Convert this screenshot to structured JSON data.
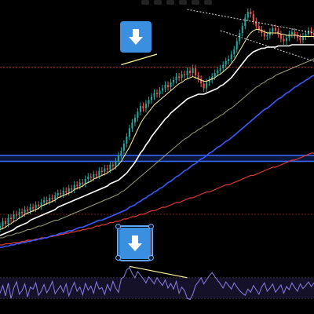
{
  "colors": {
    "background": "#000000",
    "candle_up": "#26a69a",
    "candle_down": "#ef5350",
    "ma_fast": "#fff59d",
    "ma_white": "#ffffff",
    "ma_slow": "#9e9d7a",
    "ma_blue": "#3d5afe",
    "ma_red": "#e53935",
    "support_band": "#1f3fa8",
    "resistance_line": "#b71c1c",
    "arrow_button": "#3b8fe0",
    "oscillator": "#8a7fe8",
    "divergence_line": "#fff59d"
  },
  "icons": {
    "top_marker": "arrow-down-icon",
    "bottom_marker": "arrow-down-icon"
  },
  "chart_data": [
    {
      "type": "line",
      "grid": false,
      "legend": "none",
      "price": [
        48,
        52,
        50,
        55,
        54,
        58,
        57,
        60,
        59,
        62,
        61,
        64,
        63,
        66,
        65,
        68,
        70,
        69,
        72,
        71,
        74,
        76,
        75,
        78,
        77,
        80,
        79,
        83,
        82,
        85,
        84,
        88,
        90,
        89,
        92,
        91,
        95,
        94,
        97,
        96,
        100,
        99,
        103,
        108,
        112,
        118,
        124,
        131,
        136,
        140,
        145,
        150,
        148,
        152,
        155,
        158,
        161,
        160,
        163,
        165,
        168,
        166,
        170,
        172,
        175,
        174,
        177,
        176,
        180,
        178,
        182,
        176,
        173,
        169,
        165,
        170,
        172,
        175,
        178,
        180,
        182,
        185,
        188,
        190,
        194,
        198,
        205,
        212,
        218,
        225,
        230,
        228,
        222,
        218,
        215,
        212,
        209,
        210,
        213,
        216,
        214,
        211,
        207,
        205,
        208,
        211,
        213,
        210,
        208,
        206,
        209,
        211,
        214,
        212,
        210
      ],
      "ma_fast": [
        45,
        46,
        47,
        49,
        50,
        52,
        53,
        55,
        56,
        58,
        59,
        60,
        61,
        62,
        63,
        65,
        66,
        67,
        68,
        69,
        70,
        72,
        73,
        74,
        75,
        76,
        77,
        79,
        80,
        81,
        82,
        84,
        85,
        86,
        88,
        89,
        90,
        91,
        92,
        93,
        95,
        96,
        98,
        100,
        103,
        107,
        111,
        115,
        120,
        125,
        130,
        135,
        139,
        142,
        145,
        148,
        151,
        153,
        155,
        157,
        159,
        161,
        163,
        165,
        167,
        169,
        170,
        172,
        173,
        174,
        175,
        174,
        173,
        172,
        171,
        171,
        172,
        173,
        174,
        176,
        177,
        179,
        181,
        183,
        186,
        189,
        193,
        197,
        201,
        205,
        209,
        212,
        214,
        215,
        215,
        214,
        213,
        212,
        212,
        212,
        212,
        212,
        211,
        211,
        210,
        210,
        210,
        210,
        210,
        209,
        209,
        209,
        209,
        209,
        209
      ],
      "ma_white": [
        40,
        41,
        42,
        43,
        44,
        45,
        47,
        48,
        49,
        50,
        51,
        53,
        54,
        55,
        56,
        57,
        58,
        59,
        60,
        61,
        62,
        64,
        65,
        66,
        67,
        68,
        69,
        70,
        71,
        72,
        73,
        74,
        75,
        76,
        77,
        78,
        79,
        80,
        81,
        82,
        84,
        85,
        86,
        87,
        89,
        91,
        93,
        96,
        99,
        102,
        106,
        110,
        113,
        117,
        120,
        124,
        127,
        130,
        133,
        136,
        139,
        141,
        144,
        146,
        148,
        150,
        152,
        154,
        156,
        157,
        158,
        159,
        160,
        160,
        160,
        161,
        162,
        163,
        164,
        165,
        167,
        168,
        170,
        172,
        174,
        177,
        180,
        183,
        186,
        189,
        192,
        194,
        196,
        197,
        198,
        199,
        199,
        200,
        200,
        200,
        200,
        201,
        201,
        201,
        201,
        201,
        202,
        202,
        202,
        202,
        202,
        202,
        202,
        202,
        202
      ],
      "ma_slow": [
        38,
        38,
        39,
        40,
        40,
        41,
        42,
        42,
        43,
        44,
        45,
        45,
        46,
        47,
        48,
        48,
        49,
        50,
        51,
        52,
        53,
        53,
        54,
        55,
        56,
        57,
        58,
        59,
        60,
        61,
        62,
        63,
        64,
        65,
        66,
        67,
        68,
        69,
        70,
        71,
        72,
        73,
        74,
        75,
        77,
        78,
        80,
        82,
        84,
        86,
        88,
        90,
        92,
        94,
        96,
        98,
        100,
        102,
        104,
        106,
        108,
        110,
        112,
        114,
        116,
        118,
        120,
        122,
        123,
        125,
        127,
        128,
        130,
        131,
        133,
        134,
        136,
        137,
        139,
        140,
        142,
        143,
        145,
        147,
        148,
        150,
        152,
        154,
        156,
        158,
        160,
        162,
        164,
        166,
        167,
        169,
        170,
        172,
        173,
        174,
        176,
        177,
        178,
        179,
        180,
        181,
        182,
        183,
        184,
        185,
        186,
        187,
        188,
        189,
        190
      ],
      "ma_blue": [
        30,
        30,
        31,
        31,
        32,
        32,
        33,
        33,
        34,
        34,
        35,
        35,
        36,
        36,
        37,
        37,
        38,
        38,
        39,
        40,
        40,
        41,
        42,
        42,
        43,
        44,
        44,
        45,
        46,
        47,
        47,
        48,
        49,
        50,
        51,
        52,
        53,
        53,
        54,
        55,
        56,
        57,
        58,
        59,
        60,
        61,
        62,
        64,
        65,
        66,
        68,
        69,
        71,
        72,
        74,
        75,
        77,
        78,
        80,
        81,
        83,
        85,
        86,
        88,
        90,
        91,
        93,
        95,
        96,
        98,
        100,
        101,
        103,
        105,
        106,
        108,
        110,
        111,
        113,
        115,
        116,
        118,
        120,
        121,
        123,
        125,
        127,
        129,
        131,
        133,
        135,
        137,
        139,
        141,
        143,
        145,
        147,
        148,
        150,
        152,
        154,
        156,
        157,
        159,
        161,
        162,
        164,
        166,
        167,
        169,
        170,
        172,
        173,
        175,
        176
      ],
      "ma_red": [
        32,
        32,
        33,
        33,
        33,
        34,
        34,
        34,
        35,
        35,
        36,
        36,
        36,
        37,
        37,
        38,
        38,
        38,
        39,
        39,
        40,
        40,
        41,
        41,
        42,
        42,
        43,
        43,
        44,
        44,
        45,
        45,
        46,
        46,
        47,
        48,
        48,
        49,
        49,
        50,
        51,
        51,
        52,
        52,
        53,
        54,
        54,
        55,
        56,
        56,
        57,
        58,
        58,
        59,
        60,
        61,
        61,
        62,
        63,
        64,
        64,
        65,
        66,
        67,
        68,
        68,
        69,
        70,
        71,
        72,
        72,
        73,
        74,
        75,
        76,
        77,
        77,
        78,
        79,
        80,
        81,
        82,
        83,
        83,
        84,
        85,
        86,
        87,
        88,
        89,
        90,
        91,
        91,
        92,
        93,
        94,
        95,
        96,
        97,
        98,
        98,
        99,
        100,
        101,
        102,
        103,
        104,
        104,
        105,
        106,
        107,
        108,
        109,
        110,
        110
      ],
      "support_band": [
        103,
        108
      ],
      "resistance_line": 183,
      "ylim": [
        20,
        240
      ]
    },
    {
      "type": "line",
      "grid": false,
      "legend": "none",
      "values": [
        40,
        55,
        35,
        60,
        30,
        50,
        62,
        38,
        45,
        58,
        33,
        52,
        48,
        60,
        36,
        44,
        57,
        41,
        50,
        63,
        39,
        47,
        55,
        42,
        58,
        35,
        49,
        61,
        44,
        52,
        37,
        59,
        46,
        54,
        40,
        62,
        48,
        51,
        38,
        57,
        45,
        63,
        50,
        42,
        68,
        72,
        85,
        90,
        78,
        70,
        82,
        75,
        68,
        60,
        72,
        65,
        58,
        70,
        62,
        55,
        66,
        50,
        59,
        48,
        63,
        40,
        52,
        45,
        30,
        28,
        38,
        55,
        62,
        70,
        58,
        66,
        74,
        80,
        72,
        65,
        58,
        50,
        62,
        55,
        48,
        60,
        52,
        45,
        40,
        36,
        48,
        42,
        55,
        47,
        38,
        52,
        60,
        44,
        50,
        58,
        42,
        49,
        56,
        40,
        53,
        47,
        60,
        51,
        44,
        58,
        49,
        55,
        62,
        53,
        60
      ],
      "ylim": [
        0,
        100
      ]
    }
  ]
}
